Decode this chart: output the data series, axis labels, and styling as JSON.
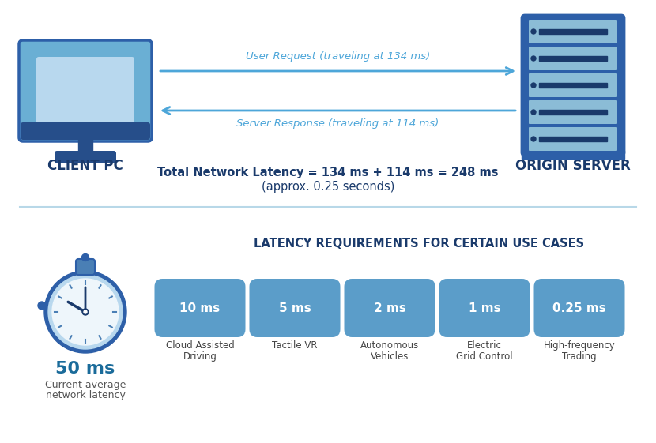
{
  "bg_color": "#ffffff",
  "top_section": {
    "arrow_color": "#4da6d9",
    "arrow_label_color": "#4da6d9",
    "request_label": "User Request (traveling at 134 ms)",
    "response_label": "Server Response (traveling at 114 ms)",
    "client_label": "CLIENT PC",
    "server_label": "ORIGIN SERVER",
    "label_color": "#1a3a6b",
    "center_text_line1": "Total Network Latency = 134 ms + 114 ms = 248 ms",
    "center_text_line2": "(approx. 0.25 seconds)",
    "center_text_color": "#1a3a6b"
  },
  "bottom_section": {
    "title": "LATENCY REQUIREMENTS FOR CERTAIN USE CASES",
    "title_color": "#1a3a6b",
    "stopwatch_big_value": "50 ms",
    "stopwatch_label1": "Current average",
    "stopwatch_label2": "network latency",
    "stopwatch_value_color": "#1a6b9a",
    "stopwatch_label_color": "#555555",
    "boxes": [
      {
        "value": "10 ms",
        "label": "Cloud Assisted\nDriving"
      },
      {
        "value": "5 ms",
        "label": "Tactile VR"
      },
      {
        "value": "2 ms",
        "label": "Autonomous\nVehicles"
      },
      {
        "value": "1 ms",
        "label": "Electric\nGrid Control"
      },
      {
        "value": "0.25 ms",
        "label": "High-frequency\nTrading"
      }
    ],
    "box_fill_color": "#5b9dc9",
    "box_text_color": "#ffffff",
    "box_label_color": "#444444",
    "divider_color": "#b8d8e8"
  },
  "monitor_colors": {
    "outer_frame": "#2d5fa8",
    "screen_bg": "#6aafd4",
    "screen_inner": "#b8d8ee",
    "bottom_bar": "#264e8a",
    "stand": "#264e8a",
    "base": "#264e8a"
  },
  "server_colors": {
    "body": "#2d5fa8",
    "slot_light": "#8bbcd6",
    "slot_lighter": "#b8d8ee",
    "slot_dark": "#1a3a6b",
    "indicator": "#1a3a6b"
  },
  "stopwatch_colors": {
    "outer_ring": "#2d5fa8",
    "mid_ring": "#b8d8ee",
    "face": "#eef6fb",
    "crown_body": "#4a7fb5",
    "crown_top": "#2d5fa8",
    "hand": "#1a3a6b",
    "tick": "#4a7fb5",
    "center": "#1a3a6b"
  }
}
